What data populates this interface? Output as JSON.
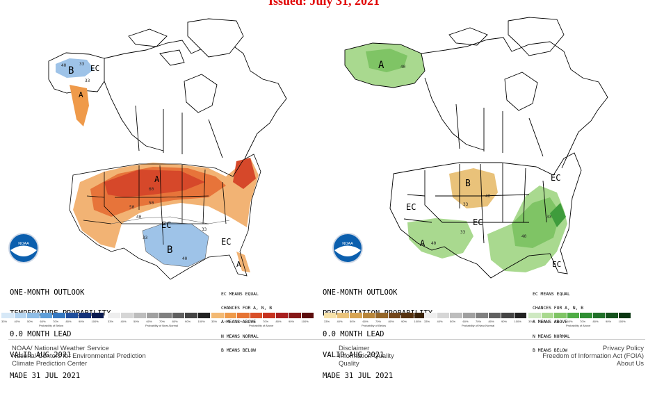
{
  "issued": "Issued: July 31, 2021",
  "temperature_map": {
    "caption": [
      "ONE-MONTH OUTLOOK",
      "TEMPERATURE PROBABILITY",
      "0.0 MONTH LEAD",
      "VALID AUG 2021",
      "MADE 31 JUL 2021"
    ],
    "legend": [
      "EC MEANS EQUAL",
      "CHANCES FOR A, N, B",
      "A MEANS ABOVE",
      "N MEANS NORMAL",
      "B MEANS BELOW"
    ],
    "region_labels": {
      "b_alaska": "B",
      "ec_alaska": "EC",
      "a_pacnw": "A",
      "a_north": "A",
      "ec_center": "EC",
      "b_south": "B",
      "ec_southeast": "EC",
      "a_florida": "A"
    },
    "contour_labels": [
      "40",
      "33",
      "33",
      "60",
      "50",
      "40",
      "33",
      "33",
      "40",
      "50"
    ],
    "colorbar_groups": [
      {
        "title": "Probability of Below",
        "ticks": [
          "33%",
          "40%",
          "50%",
          "60%",
          "70%",
          "80%",
          "90%",
          "100%"
        ],
        "colors": [
          "#d6e8f7",
          "#b4d4f0",
          "#8fbde6",
          "#5e9ed8",
          "#3578c0",
          "#1f4e9c",
          "#14327a",
          "#0a1a50"
        ]
      },
      {
        "title": "Probability of Near-Normal",
        "ticks": [
          "33%",
          "40%",
          "50%",
          "60%",
          "70%",
          "80%",
          "90%",
          "100%"
        ],
        "colors": [
          "#eeeeee",
          "#d6d6d6",
          "#bdbdbd",
          "#a0a0a0",
          "#808080",
          "#606060",
          "#444444",
          "#222222"
        ]
      },
      {
        "title": "Probability of Above",
        "ticks": [
          "33%",
          "40%",
          "50%",
          "60%",
          "70%",
          "80%",
          "90%",
          "100%"
        ],
        "colors": [
          "#f3b973",
          "#ef9a4a",
          "#e67333",
          "#d94f28",
          "#c7321f",
          "#a81e1e",
          "#861818",
          "#5c0d0d"
        ]
      }
    ]
  },
  "precipitation_map": {
    "caption": [
      "ONE-MONTH OUTLOOK",
      "PRECIPITATION PROBABILITY",
      "0.0 MONTH LEAD",
      "VALID AUG 2021",
      "MADE 31 JUL 2021"
    ],
    "legend": [
      "EC MEANS EQUAL",
      "CHANCES FOR A, N, B",
      "A MEANS ABOVE",
      "N MEANS NORMAL",
      "B MEANS BELOW"
    ],
    "region_labels": {
      "a_alaska": "A",
      "ec_east": "EC",
      "b_plains": "B",
      "ec_west": "EC",
      "ec_center": "EC",
      "a_southwest": "A",
      "ec_florida": "EC"
    },
    "contour_labels": [
      "40",
      "33",
      "40",
      "40",
      "33",
      "33",
      "40"
    ],
    "colorbar_groups": [
      {
        "title": "Probability of Below",
        "ticks": [
          "33%",
          "40%",
          "50%",
          "60%",
          "70%",
          "80%",
          "90%",
          "100%"
        ],
        "colors": [
          "#f6e1a8",
          "#e9c27a",
          "#d7a453",
          "#b8863a",
          "#936528",
          "#73461a",
          "#56320f",
          "#3a2208"
        ]
      },
      {
        "title": "Probability of Near-Normal",
        "ticks": [
          "33%",
          "40%",
          "50%",
          "60%",
          "70%",
          "80%",
          "90%",
          "100%"
        ],
        "colors": [
          "#eeeeee",
          "#d6d6d6",
          "#bdbdbd",
          "#a0a0a0",
          "#808080",
          "#606060",
          "#444444",
          "#222222"
        ]
      },
      {
        "title": "Probability of Above",
        "ticks": [
          "33%",
          "40%",
          "50%",
          "60%",
          "70%",
          "80%",
          "90%",
          "100%"
        ],
        "colors": [
          "#cfe9c2",
          "#a9d98f",
          "#7fc465",
          "#4fac45",
          "#2f8f33",
          "#1f7028",
          "#14521c",
          "#0b3612"
        ]
      }
    ]
  },
  "logo": {
    "text": "NOAA",
    "color": "#0b5fae"
  },
  "footer": {
    "left": [
      "NOAA/ National Weather Service",
      "National Centers for Environmental Prediction",
      "Climate Prediction Center"
    ],
    "center": [
      "Disclaimer",
      "Information Quality",
      "Quality"
    ],
    "right": [
      "Privacy Policy",
      "Freedom of Information Act (FOIA)",
      "About Us"
    ]
  }
}
